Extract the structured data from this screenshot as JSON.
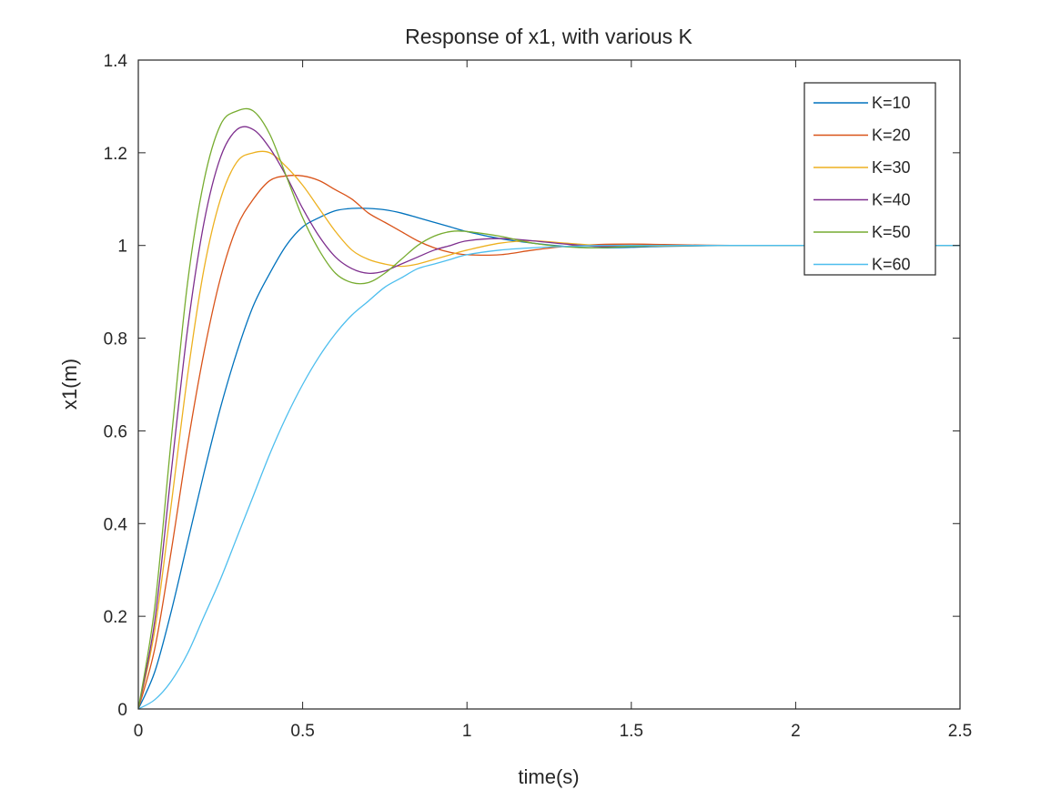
{
  "chart_data": {
    "type": "line",
    "title": "Response of x1, with various K",
    "xlabel": "time(s)",
    "ylabel": "x1(m)",
    "xlim": [
      0,
      2.5
    ],
    "ylim": [
      0,
      1.4
    ],
    "xticks": [
      0,
      0.5,
      1,
      1.5,
      2,
      2.5
    ],
    "xtick_labels": [
      "0",
      "0.5",
      "1",
      "1.5",
      "2",
      "2.5"
    ],
    "yticks": [
      0,
      0.2,
      0.4,
      0.6,
      0.8,
      1,
      1.2,
      1.4
    ],
    "ytick_labels": [
      "0",
      "0.2",
      "0.4",
      "0.6",
      "0.8",
      "1",
      "1.2",
      "1.4"
    ],
    "grid": false,
    "legend_position": "top-right",
    "series": [
      {
        "name": "K=10",
        "color": "#0072BD",
        "x": [
          0,
          0.05,
          0.1,
          0.15,
          0.2,
          0.25,
          0.3,
          0.35,
          0.4,
          0.45,
          0.5,
          0.55,
          0.6,
          0.65,
          0.7,
          0.75,
          0.8,
          0.85,
          0.9,
          0.95,
          1.0,
          1.1,
          1.2,
          1.3,
          1.4,
          1.5,
          1.6,
          1.8,
          2.0,
          2.2,
          2.5
        ],
        "y": [
          0,
          0.08,
          0.21,
          0.36,
          0.51,
          0.65,
          0.77,
          0.87,
          0.94,
          1.0,
          1.04,
          1.06,
          1.075,
          1.08,
          1.08,
          1.077,
          1.07,
          1.06,
          1.05,
          1.04,
          1.03,
          1.015,
          1.005,
          0.998,
          0.995,
          0.996,
          0.998,
          1.0,
          1.0,
          1.0,
          1.0
        ]
      },
      {
        "name": "K=20",
        "color": "#D95319",
        "x": [
          0,
          0.05,
          0.1,
          0.15,
          0.2,
          0.25,
          0.3,
          0.35,
          0.4,
          0.45,
          0.5,
          0.55,
          0.6,
          0.65,
          0.7,
          0.75,
          0.8,
          0.85,
          0.9,
          0.95,
          1.0,
          1.1,
          1.2,
          1.3,
          1.4,
          1.5,
          1.6,
          1.8,
          2.0,
          2.2,
          2.5
        ],
        "y": [
          0,
          0.13,
          0.34,
          0.57,
          0.77,
          0.93,
          1.04,
          1.1,
          1.14,
          1.15,
          1.15,
          1.14,
          1.12,
          1.1,
          1.07,
          1.05,
          1.03,
          1.01,
          0.995,
          0.985,
          0.98,
          0.98,
          0.99,
          0.998,
          1.002,
          1.003,
          1.002,
          1.0,
          1.0,
          1.0,
          1.0
        ]
      },
      {
        "name": "K=30",
        "color": "#EDB120",
        "x": [
          0,
          0.05,
          0.1,
          0.15,
          0.2,
          0.25,
          0.3,
          0.35,
          0.4,
          0.45,
          0.5,
          0.55,
          0.6,
          0.65,
          0.7,
          0.75,
          0.8,
          0.85,
          0.9,
          0.95,
          1.0,
          1.1,
          1.2,
          1.3,
          1.4,
          1.5,
          1.6,
          1.8,
          2.0,
          2.2,
          2.5
        ],
        "y": [
          0,
          0.17,
          0.44,
          0.72,
          0.95,
          1.1,
          1.18,
          1.2,
          1.2,
          1.17,
          1.13,
          1.08,
          1.03,
          0.99,
          0.97,
          0.96,
          0.955,
          0.96,
          0.97,
          0.98,
          0.99,
          1.005,
          1.01,
          1.005,
          1.0,
          0.998,
          0.999,
          1.0,
          1.0,
          1.0,
          1.0
        ]
      },
      {
        "name": "K=40",
        "color": "#7E2F8E",
        "x": [
          0,
          0.05,
          0.1,
          0.15,
          0.2,
          0.25,
          0.3,
          0.35,
          0.4,
          0.45,
          0.5,
          0.55,
          0.6,
          0.65,
          0.7,
          0.75,
          0.8,
          0.85,
          0.9,
          0.95,
          1.0,
          1.1,
          1.2,
          1.3,
          1.4,
          1.5,
          1.6,
          1.8,
          2.0,
          2.2,
          2.5
        ],
        "y": [
          0,
          0.19,
          0.51,
          0.82,
          1.05,
          1.19,
          1.25,
          1.25,
          1.21,
          1.15,
          1.08,
          1.02,
          0.975,
          0.95,
          0.94,
          0.945,
          0.96,
          0.975,
          0.99,
          1.0,
          1.01,
          1.015,
          1.01,
          1.003,
          0.998,
          0.998,
          1.0,
          1.0,
          1.0,
          1.0,
          1.0
        ]
      },
      {
        "name": "K=50",
        "color": "#77AC30",
        "x": [
          0,
          0.05,
          0.1,
          0.15,
          0.2,
          0.25,
          0.3,
          0.35,
          0.4,
          0.45,
          0.5,
          0.55,
          0.6,
          0.65,
          0.7,
          0.75,
          0.8,
          0.85,
          0.9,
          0.95,
          1.0,
          1.1,
          1.2,
          1.3,
          1.4,
          1.5,
          1.6,
          1.8,
          2.0,
          2.2,
          2.5
        ],
        "y": [
          0,
          0.22,
          0.58,
          0.92,
          1.14,
          1.26,
          1.29,
          1.29,
          1.24,
          1.15,
          1.06,
          0.99,
          0.94,
          0.92,
          0.92,
          0.94,
          0.97,
          1.0,
          1.02,
          1.03,
          1.03,
          1.02,
          1.005,
          0.997,
          0.995,
          0.998,
          1.0,
          1.0,
          1.0,
          1.0,
          1.0
        ]
      },
      {
        "name": "K=60",
        "color": "#4DBEEE",
        "x": [
          0,
          0.05,
          0.1,
          0.15,
          0.2,
          0.25,
          0.3,
          0.35,
          0.4,
          0.45,
          0.5,
          0.55,
          0.6,
          0.65,
          0.7,
          0.75,
          0.8,
          0.85,
          0.9,
          0.95,
          1.0,
          1.1,
          1.2,
          1.3,
          1.4,
          1.5,
          1.6,
          1.8,
          2.0,
          2.2,
          2.5
        ],
        "y": [
          0,
          0.02,
          0.06,
          0.12,
          0.2,
          0.28,
          0.37,
          0.46,
          0.55,
          0.63,
          0.7,
          0.76,
          0.81,
          0.85,
          0.88,
          0.91,
          0.93,
          0.95,
          0.96,
          0.97,
          0.98,
          0.99,
          0.995,
          0.998,
          1.0,
          1.0,
          1.0,
          1.0,
          1.0,
          1.0,
          1.0
        ]
      }
    ]
  }
}
